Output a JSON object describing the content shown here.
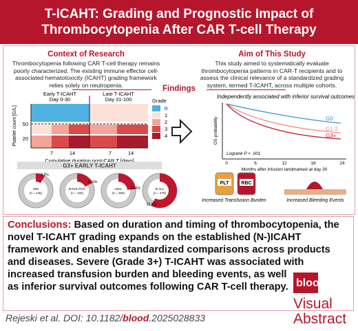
{
  "header": {
    "title": "T-ICAHT: Grading and Prognostic Impact of Thrombocytopenia After CAR T-cell Therapy"
  },
  "context": {
    "heading": "Context of Research",
    "text": "Thrombocytopenia following CAR T-cell therapy remains poorly characterized. The existing immune effector cell-associated hematotoxicity (ICAHT) grading framework relies solely on neutropenia."
  },
  "aim": {
    "heading": "Aim of This Study",
    "text": "This study aimed to systematically evaluate thrombocytopenia patterns in CAR-T recipients and to assess the clinical relevance of a standardized grading system, termed T-ICAHT, across multiple cohorts."
  },
  "findings": {
    "heading": "Findings",
    "heatmap": {
      "early": "Early T-ICAHT",
      "early_days": "Day 0-30",
      "late": "Late T-ICAHT",
      "late_days": "Day 31-100",
      "ylabel": "Platelet count [G/L]",
      "yticks": [
        "50",
        "20"
      ],
      "xticks": [
        "7",
        "14",
        "7",
        "14"
      ],
      "xlabel": "Cumulative duration post-CAR T [days]",
      "legend_title": "Grade",
      "grades": [
        "0",
        "1",
        "2",
        "3",
        "4"
      ]
    },
    "pies": {
      "title": "G3+ EARLY T-ICAHT",
      "items": [
        {
          "label": "MM",
          "n": "(n = 145)",
          "pct": 8.8,
          "pct_label": "8.8%"
        },
        {
          "label": "B-NHL POC",
          "n": "(n = 102)",
          "pct": 17.6,
          "pct_label": "17.6%"
        },
        {
          "label": "LBCL",
          "n": "(n = 360)",
          "pct": 23.6,
          "pct_label": "23.6%"
        },
        {
          "label": "B-ALL",
          "n": "(n = 276)",
          "pct": 58.3,
          "pct_label": "58.3%"
        }
      ]
    },
    "km": {
      "title": "Independently associated with inferior survival outcomes",
      "ylabel": "OS probability",
      "xticks": [
        "0",
        "6",
        "12",
        "18",
        "24"
      ],
      "xlabel": "Months after infusion landmarked at day 30",
      "logrank": "Logrank P < .001",
      "groups": [
        "G0",
        "G1-2",
        "G3+"
      ]
    },
    "transfusion": {
      "bags": [
        "PLT",
        "RBC"
      ],
      "caption": "Increased Transfusion Burden"
    },
    "bleeding": {
      "caption": "Increased Bleeding Events"
    }
  },
  "conclusions": {
    "label": "Conclusions:",
    "text": "Based on duration and timing of thrombocytopenia, the novel T-ICAHT grading expands on the established (N-)ICAHT framework and enables standardized comparisons across products and diseases. Severe (Grade 3+) T-ICAHT was associated with increased transfusion burden and bleeding events, as well as inferior survival outcomes following CAR T-cell therapy."
  },
  "logo": {
    "brand": "blood",
    "line1": "Visual",
    "line2": "Abstract"
  },
  "footer": {
    "authors": "Rejeski et al. DOI: 10.1182/",
    "journal": "blood",
    "doi_suffix": ".2025028833"
  }
}
